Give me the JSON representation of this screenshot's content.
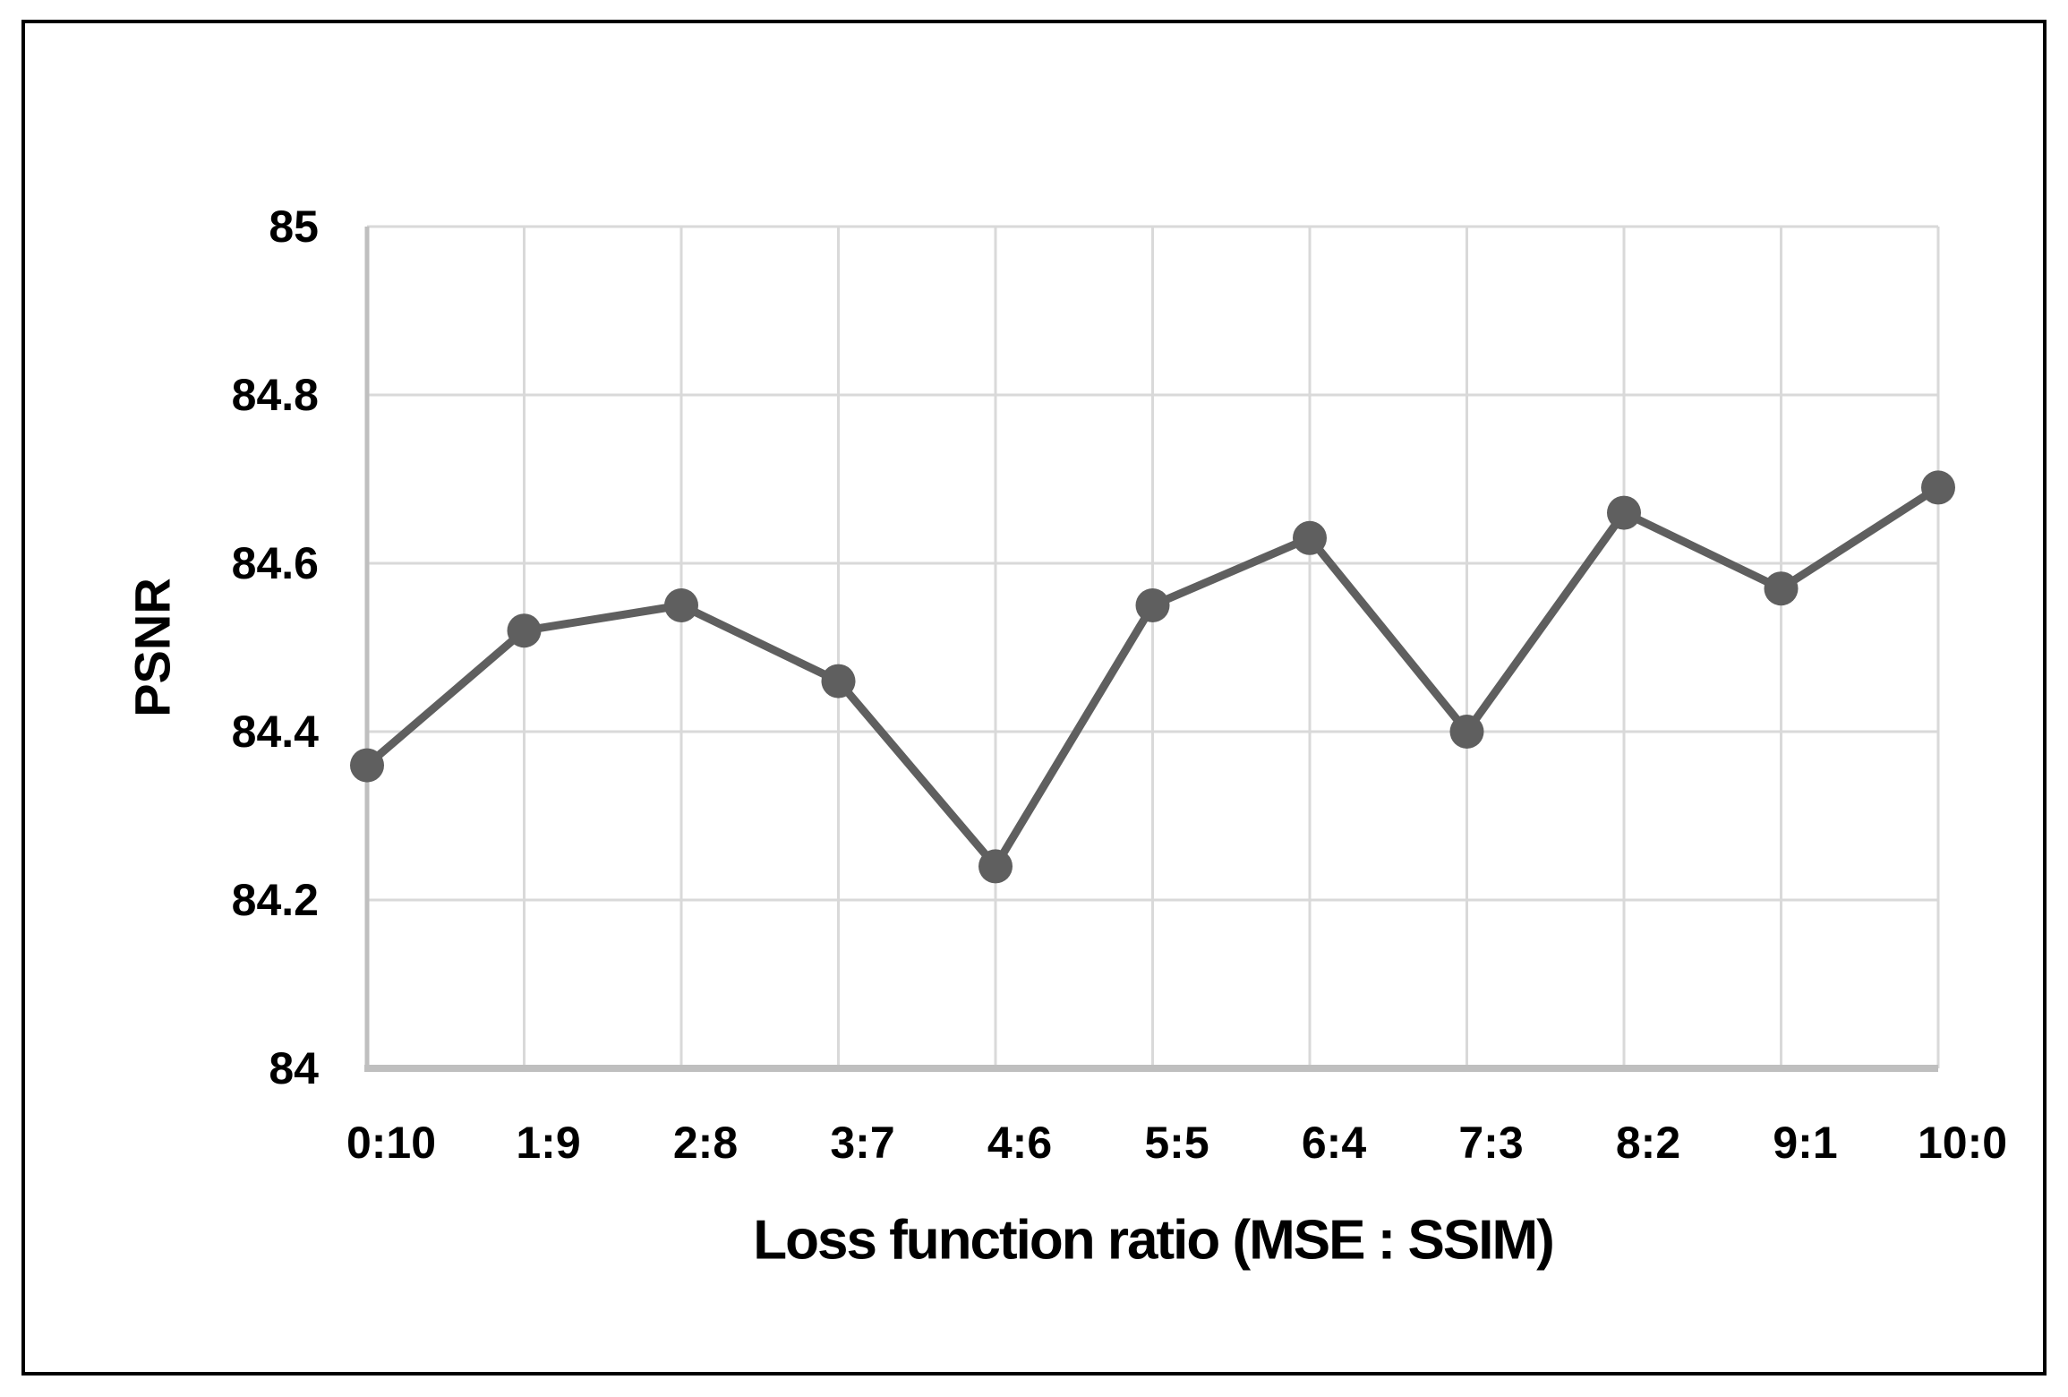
{
  "chart_data": {
    "type": "line",
    "title": "",
    "xlabel": "Loss function ratio (MSE : SSIM)",
    "ylabel": "PSNR",
    "categories": [
      "0:10",
      "1:9",
      "2:8",
      "3:7",
      "4:6",
      "5:5",
      "6:4",
      "7:3",
      "8:2",
      "9:1",
      "10:0"
    ],
    "series": [
      {
        "name": "PSNR",
        "values": [
          84.36,
          84.52,
          84.55,
          84.46,
          84.24,
          84.55,
          84.63,
          84.4,
          84.66,
          84.57,
          84.69
        ]
      }
    ],
    "ylim": [
      84,
      85
    ],
    "ytick_values": [
      85,
      84.8,
      84.6,
      84.4,
      84.2,
      84
    ],
    "ytick_labels": [
      "85",
      "84.8",
      "84.6",
      "84.4",
      "84.2",
      "84"
    ],
    "grid": true,
    "legend": false,
    "colors": {
      "series": "#5f5f5f",
      "gridline": "#d9d9d9",
      "axis_line": "#bfbfbf",
      "text": "#000000",
      "border": "#000000",
      "background": "#ffffff"
    }
  }
}
